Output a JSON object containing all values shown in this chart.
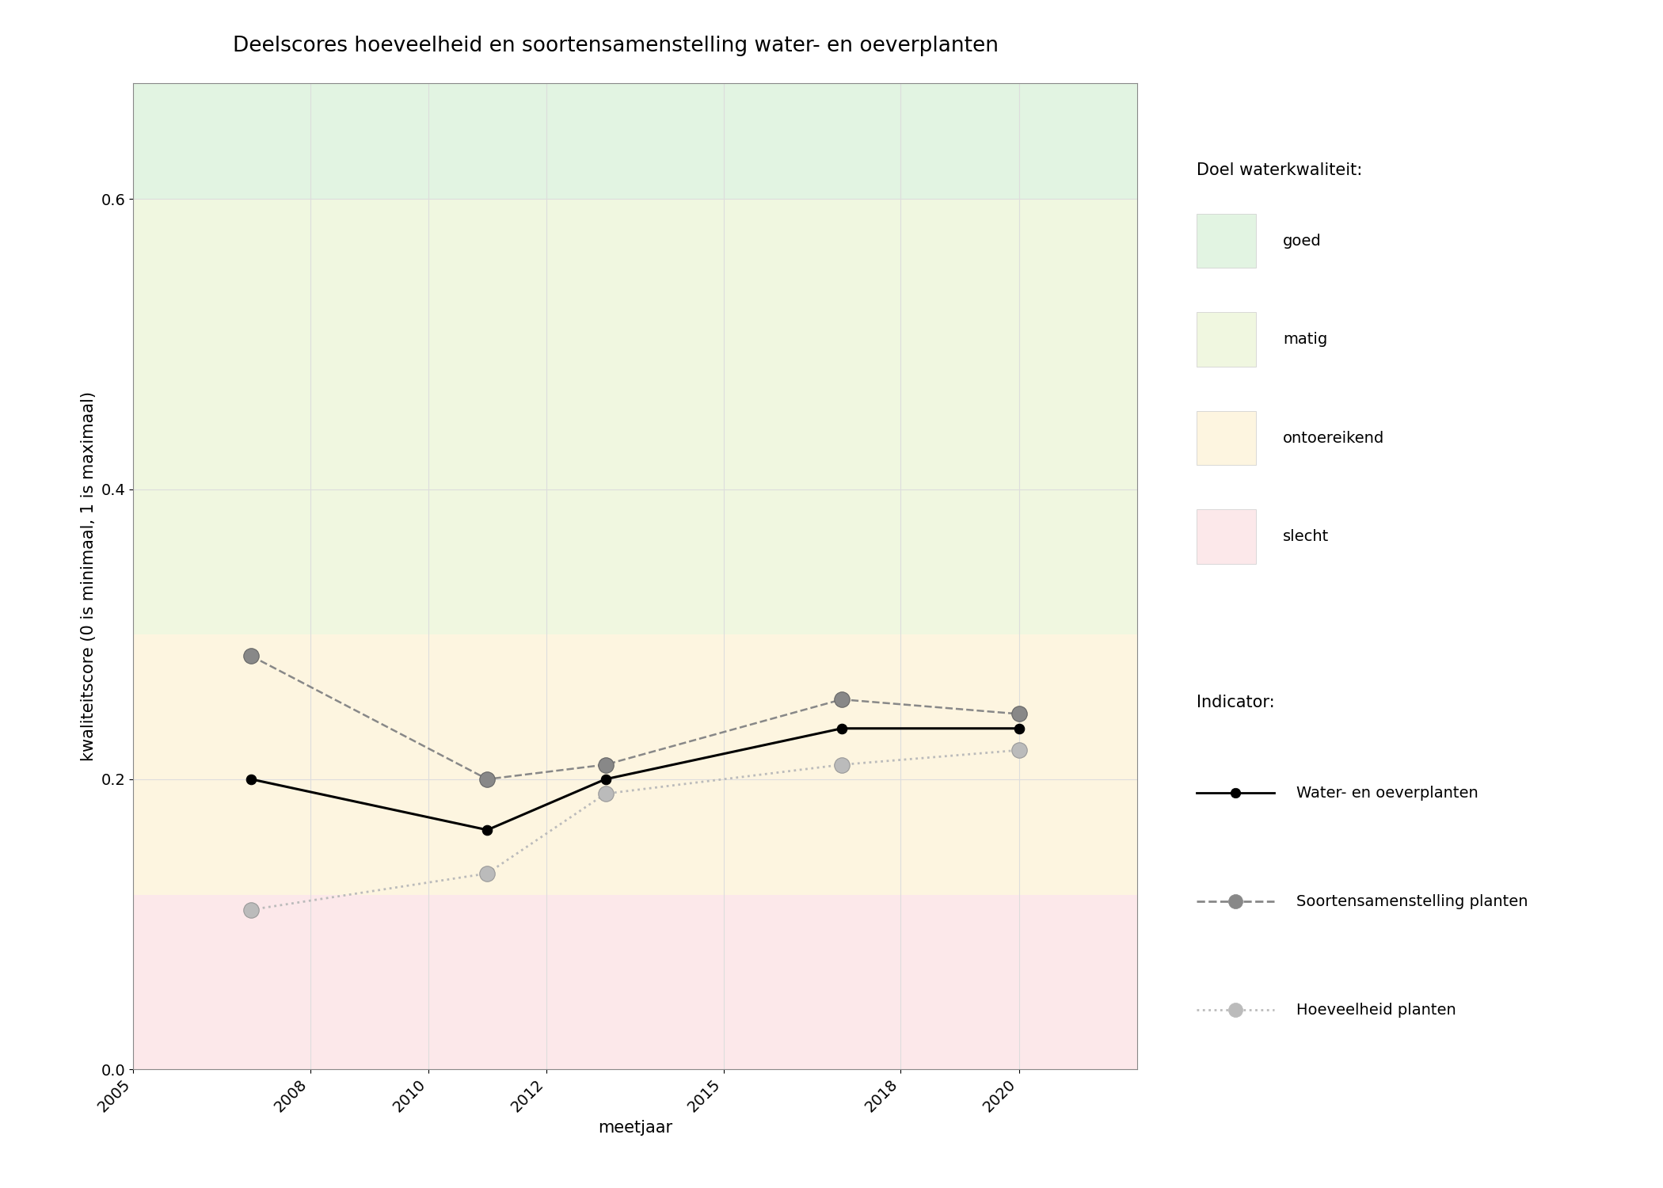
{
  "title": "Deelscores hoeveelheid en soortensamenstelling water- en oeverplanten",
  "xlabel": "meetjaar",
  "ylabel": "kwaliteitscore (0 is minimaal, 1 is maximaal)",
  "xlim": [
    2005,
    2022
  ],
  "ylim": [
    0.0,
    0.68
  ],
  "xticks": [
    2005,
    2008,
    2010,
    2012,
    2015,
    2018,
    2020
  ],
  "yticks": [
    0.0,
    0.2,
    0.4,
    0.6
  ],
  "bg_zones": [
    {
      "ymin": 0.6,
      "ymax": 0.68,
      "color": "#e2f4e2",
      "label": "goed"
    },
    {
      "ymin": 0.3,
      "ymax": 0.6,
      "color": "#f0f7e0",
      "label": "matig"
    },
    {
      "ymin": 0.12,
      "ymax": 0.3,
      "color": "#fdf5e0",
      "label": "ontoereikend"
    },
    {
      "ymin": 0.0,
      "ymax": 0.12,
      "color": "#fce8ea",
      "label": "slecht"
    }
  ],
  "series": [
    {
      "label": "Water- en oeverplanten",
      "years": [
        2007,
        2011,
        2013,
        2017,
        2020
      ],
      "values": [
        0.2,
        0.165,
        0.2,
        0.235,
        0.235
      ],
      "color": "#000000",
      "linestyle": "solid",
      "linewidth": 2.2,
      "markersize": 9,
      "markerfacecolor": "#000000",
      "markeredgecolor": "#000000",
      "zorder": 5
    },
    {
      "label": "Soortensamenstelling planten",
      "years": [
        2007,
        2011,
        2013,
        2017,
        2020
      ],
      "values": [
        0.285,
        0.2,
        0.21,
        0.255,
        0.245
      ],
      "color": "#888888",
      "linestyle": "dashed",
      "linewidth": 1.8,
      "markersize": 14,
      "markerfacecolor": "#888888",
      "markeredgecolor": "#666666",
      "zorder": 4
    },
    {
      "label": "Hoeveelheid planten",
      "years": [
        2007,
        2011,
        2013,
        2017,
        2020
      ],
      "values": [
        0.11,
        0.135,
        0.19,
        0.21,
        0.22
      ],
      "color": "#bbbbbb",
      "linestyle": "dotted",
      "linewidth": 2.0,
      "markersize": 14,
      "markerfacecolor": "#bbbbbb",
      "markeredgecolor": "#999999",
      "zorder": 3
    }
  ],
  "legend_bg_title": "Doel waterkwaliteit:",
  "legend_indicator_title": "Indicator:",
  "grid_color": "#dddddd",
  "background_color": "#ffffff",
  "title_fontsize": 19,
  "label_fontsize": 15,
  "tick_fontsize": 14,
  "legend_fontsize": 14
}
